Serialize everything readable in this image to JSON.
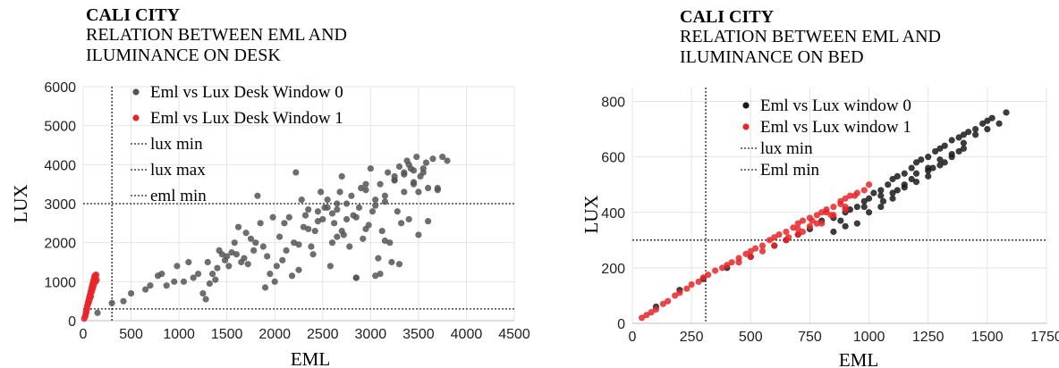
{
  "chart_data": [
    {
      "type": "scatter",
      "title": "CALI CITY",
      "subtitle_lines": [
        "RELATION BETWEEN EML AND",
        "ILUMINANCE ON  DESK"
      ],
      "xlabel": "EML",
      "ylabel": "LUX",
      "xlim": [
        0,
        4500
      ],
      "ylim": [
        0,
        6000
      ],
      "xticks": [
        0,
        500,
        1000,
        1500,
        2000,
        2500,
        3000,
        3500,
        4000,
        4500
      ],
      "yticks": [
        0,
        1000,
        2000,
        3000,
        4000,
        5000,
        6000
      ],
      "grid": true,
      "legend_position": "top-left",
      "series": [
        {
          "name": "Eml vs Lux Desk Window 0",
          "color": "#555555",
          "x": [
            150,
            300,
            420,
            500,
            650,
            700,
            780,
            820,
            870,
            950,
            980,
            1050,
            1100,
            1150,
            1200,
            1250,
            1280,
            1300,
            1320,
            1350,
            1380,
            1400,
            1420,
            1450,
            1480,
            1500,
            1520,
            1550,
            1580,
            1600,
            1620,
            1650,
            1680,
            1700,
            1720,
            1750,
            1780,
            1800,
            1820,
            1850,
            1880,
            1900,
            1920,
            1950,
            1980,
            2000,
            2020,
            2050,
            2080,
            2100,
            2120,
            2150,
            2180,
            2200,
            2220,
            2250,
            2280,
            2300,
            2320,
            2350,
            2380,
            2400,
            2420,
            2450,
            2480,
            2500,
            2520,
            2550,
            2580,
            2600,
            2620,
            2650,
            2680,
            2700,
            2720,
            2750,
            2780,
            2800,
            2820,
            2850,
            2880,
            2900,
            2920,
            2950,
            2980,
            3000,
            3020,
            3050,
            3080,
            3100,
            3120,
            3150,
            3180,
            3200,
            3220,
            3250,
            3280,
            3300,
            3320,
            3350,
            3380,
            3400,
            3420,
            3450,
            3480,
            3500,
            3520,
            3550,
            3580,
            3600,
            3650,
            3700,
            3750,
            3800,
            2550,
            2650,
            2750,
            2850,
            2950,
            3050,
            3150,
            3250,
            3350,
            3450,
            3550,
            2450,
            2350,
            2250,
            3150,
            3350,
            3450,
            2850,
            2650,
            3050,
            2950,
            3250,
            3400,
            3600,
            3700,
            2700,
            2600,
            3500,
            3300,
            3100
          ],
          "y": [
            200,
            450,
            500,
            700,
            800,
            900,
            1150,
            1200,
            900,
            1000,
            1400,
            1000,
            1500,
            1100,
            1200,
            700,
            550,
            1500,
            950,
            1200,
            1050,
            1350,
            1800,
            1700,
            1550,
            1650,
            1400,
            1750,
            2000,
            1700,
            2400,
            1500,
            1600,
            2250,
            1450,
            2100,
            1800,
            2000,
            3200,
            2500,
            1900,
            850,
            1650,
            1200,
            2650,
            1000,
            1400,
            2150,
            1550,
            2500,
            1800,
            2650,
            1150,
            2000,
            3800,
            1300,
            3100,
            2400,
            2700,
            2850,
            1900,
            1700,
            2300,
            2800,
            3300,
            2600,
            2900,
            3100,
            1400,
            2750,
            2500,
            3000,
            3300,
            3700,
            2200,
            2600,
            1900,
            3200,
            2700,
            1100,
            2900,
            3400,
            2100,
            3500,
            2450,
            3900,
            2800,
            3100,
            1600,
            3500,
            2300,
            3200,
            3800,
            2000,
            1500,
            3600,
            2800,
            3950,
            2500,
            3300,
            4100,
            2600,
            3900,
            3500,
            4200,
            2200,
            3700,
            3800,
            4050,
            3400,
            4150,
            3400,
            4200,
            4100,
            2900,
            2850,
            3000,
            2650,
            3350,
            2950,
            3050,
            3600,
            3800,
            3850,
            3900,
            2550,
            2350,
            1950,
            2050,
            3750,
            3550,
            1100,
            2150,
            1150,
            2350,
            3700,
            4000,
            2550,
            3350,
            2300,
            2000,
            3300,
            1450,
            1200
          ]
        },
        {
          "name": "Eml vs Lux Desk Window 1",
          "color": "#e8262a",
          "x": [
            10,
            20,
            25,
            30,
            35,
            40,
            45,
            50,
            55,
            60,
            65,
            70,
            75,
            80,
            85,
            90,
            95,
            100,
            105,
            110,
            115,
            120,
            125,
            130,
            60,
            80,
            100,
            120,
            40,
            70,
            90,
            110,
            130,
            50,
            75,
            95,
            115,
            135,
            140,
            30
          ],
          "y": [
            50,
            100,
            150,
            200,
            280,
            350,
            400,
            450,
            500,
            550,
            600,
            650,
            700,
            750,
            800,
            850,
            900,
            950,
            1000,
            1050,
            1100,
            1150,
            1100,
            1000,
            480,
            620,
            820,
            980,
            300,
            560,
            740,
            900,
            1150,
            420,
            640,
            880,
            1020,
            1180,
            1050,
            220
          ]
        }
      ],
      "reference_lines": [
        {
          "name": "lux min",
          "axis": "y",
          "value": 300
        },
        {
          "name": "lux max",
          "axis": "y",
          "value": 3000
        },
        {
          "name": "eml min",
          "axis": "x",
          "value": 300
        }
      ]
    },
    {
      "type": "scatter",
      "title": "CALI CITY",
      "subtitle_lines": [
        "RELATION BETWEEN EML AND",
        "ILUMINANCE ON BED"
      ],
      "xlabel": "EML",
      "ylabel": "LUX",
      "xlim": [
        0,
        1750
      ],
      "ylim": [
        0,
        850
      ],
      "xticks": [
        0,
        250,
        500,
        750,
        1000,
        1250,
        1500,
        1750
      ],
      "yticks": [
        0,
        200,
        400,
        600,
        800
      ],
      "grid": true,
      "legend_position": "top-left",
      "series": [
        {
          "name": "Eml vs Lux window 0",
          "color": "#1a1a1a",
          "x": [
            100,
            200,
            300,
            400,
            500,
            600,
            650,
            700,
            750,
            800,
            850,
            900,
            920,
            950,
            980,
            1000,
            1020,
            1050,
            1080,
            1100,
            1120,
            1150,
            1180,
            1200,
            1220,
            1250,
            1280,
            1300,
            1320,
            1350,
            1380,
            1400,
            1420,
            1450,
            1480,
            1500,
            1520,
            1550,
            1580,
            1000,
            1050,
            1100,
            1150,
            1200,
            1250,
            1300,
            1350,
            1400,
            1100,
            1200,
            1300,
            1400,
            1150,
            1250,
            1350,
            950,
            900,
            850,
            1050,
            1450,
            1500,
            1250,
            1320,
            1180,
            1060,
            980,
            880,
            1120,
            1270,
            1380
          ],
          "y": [
            60,
            120,
            160,
            200,
            240,
            280,
            300,
            320,
            340,
            370,
            380,
            400,
            410,
            420,
            440,
            450,
            470,
            480,
            500,
            520,
            530,
            540,
            560,
            580,
            590,
            600,
            620,
            630,
            640,
            660,
            670,
            680,
            690,
            700,
            720,
            730,
            740,
            720,
            760,
            400,
            420,
            470,
            500,
            540,
            560,
            590,
            610,
            650,
            450,
            510,
            570,
            630,
            490,
            550,
            600,
            360,
            350,
            330,
            460,
            680,
            700,
            530,
            580,
            520,
            440,
            420,
            370,
            480,
            560,
            620
          ]
        },
        {
          "name": "Eml vs Lux window 1",
          "color": "#e8262a",
          "x": [
            40,
            60,
            80,
            100,
            130,
            150,
            180,
            200,
            230,
            250,
            280,
            300,
            320,
            350,
            380,
            400,
            420,
            450,
            480,
            500,
            520,
            550,
            580,
            600,
            620,
            650,
            680,
            700,
            720,
            750,
            780,
            800,
            820,
            850,
            880,
            900,
            920,
            950,
            980,
            1000,
            600,
            650,
            700,
            750,
            800,
            850,
            900,
            550,
            500,
            450,
            700,
            760,
            820,
            880,
            940,
            660,
            720,
            780,
            840,
            900
          ],
          "y": [
            20,
            30,
            40,
            50,
            70,
            80,
            100,
            110,
            125,
            140,
            150,
            165,
            175,
            190,
            200,
            210,
            220,
            235,
            250,
            260,
            270,
            280,
            300,
            310,
            320,
            330,
            345,
            360,
            370,
            380,
            390,
            400,
            410,
            420,
            440,
            450,
            460,
            470,
            480,
            500,
            280,
            300,
            320,
            350,
            360,
            390,
            410,
            260,
            240,
            220,
            340,
            370,
            400,
            430,
            460,
            310,
            330,
            360,
            390,
            420
          ]
        }
      ],
      "reference_lines": [
        {
          "name": "lux min",
          "axis": "y",
          "value": 300
        },
        {
          "name": "Eml min",
          "axis": "x",
          "value": 310
        }
      ]
    }
  ]
}
